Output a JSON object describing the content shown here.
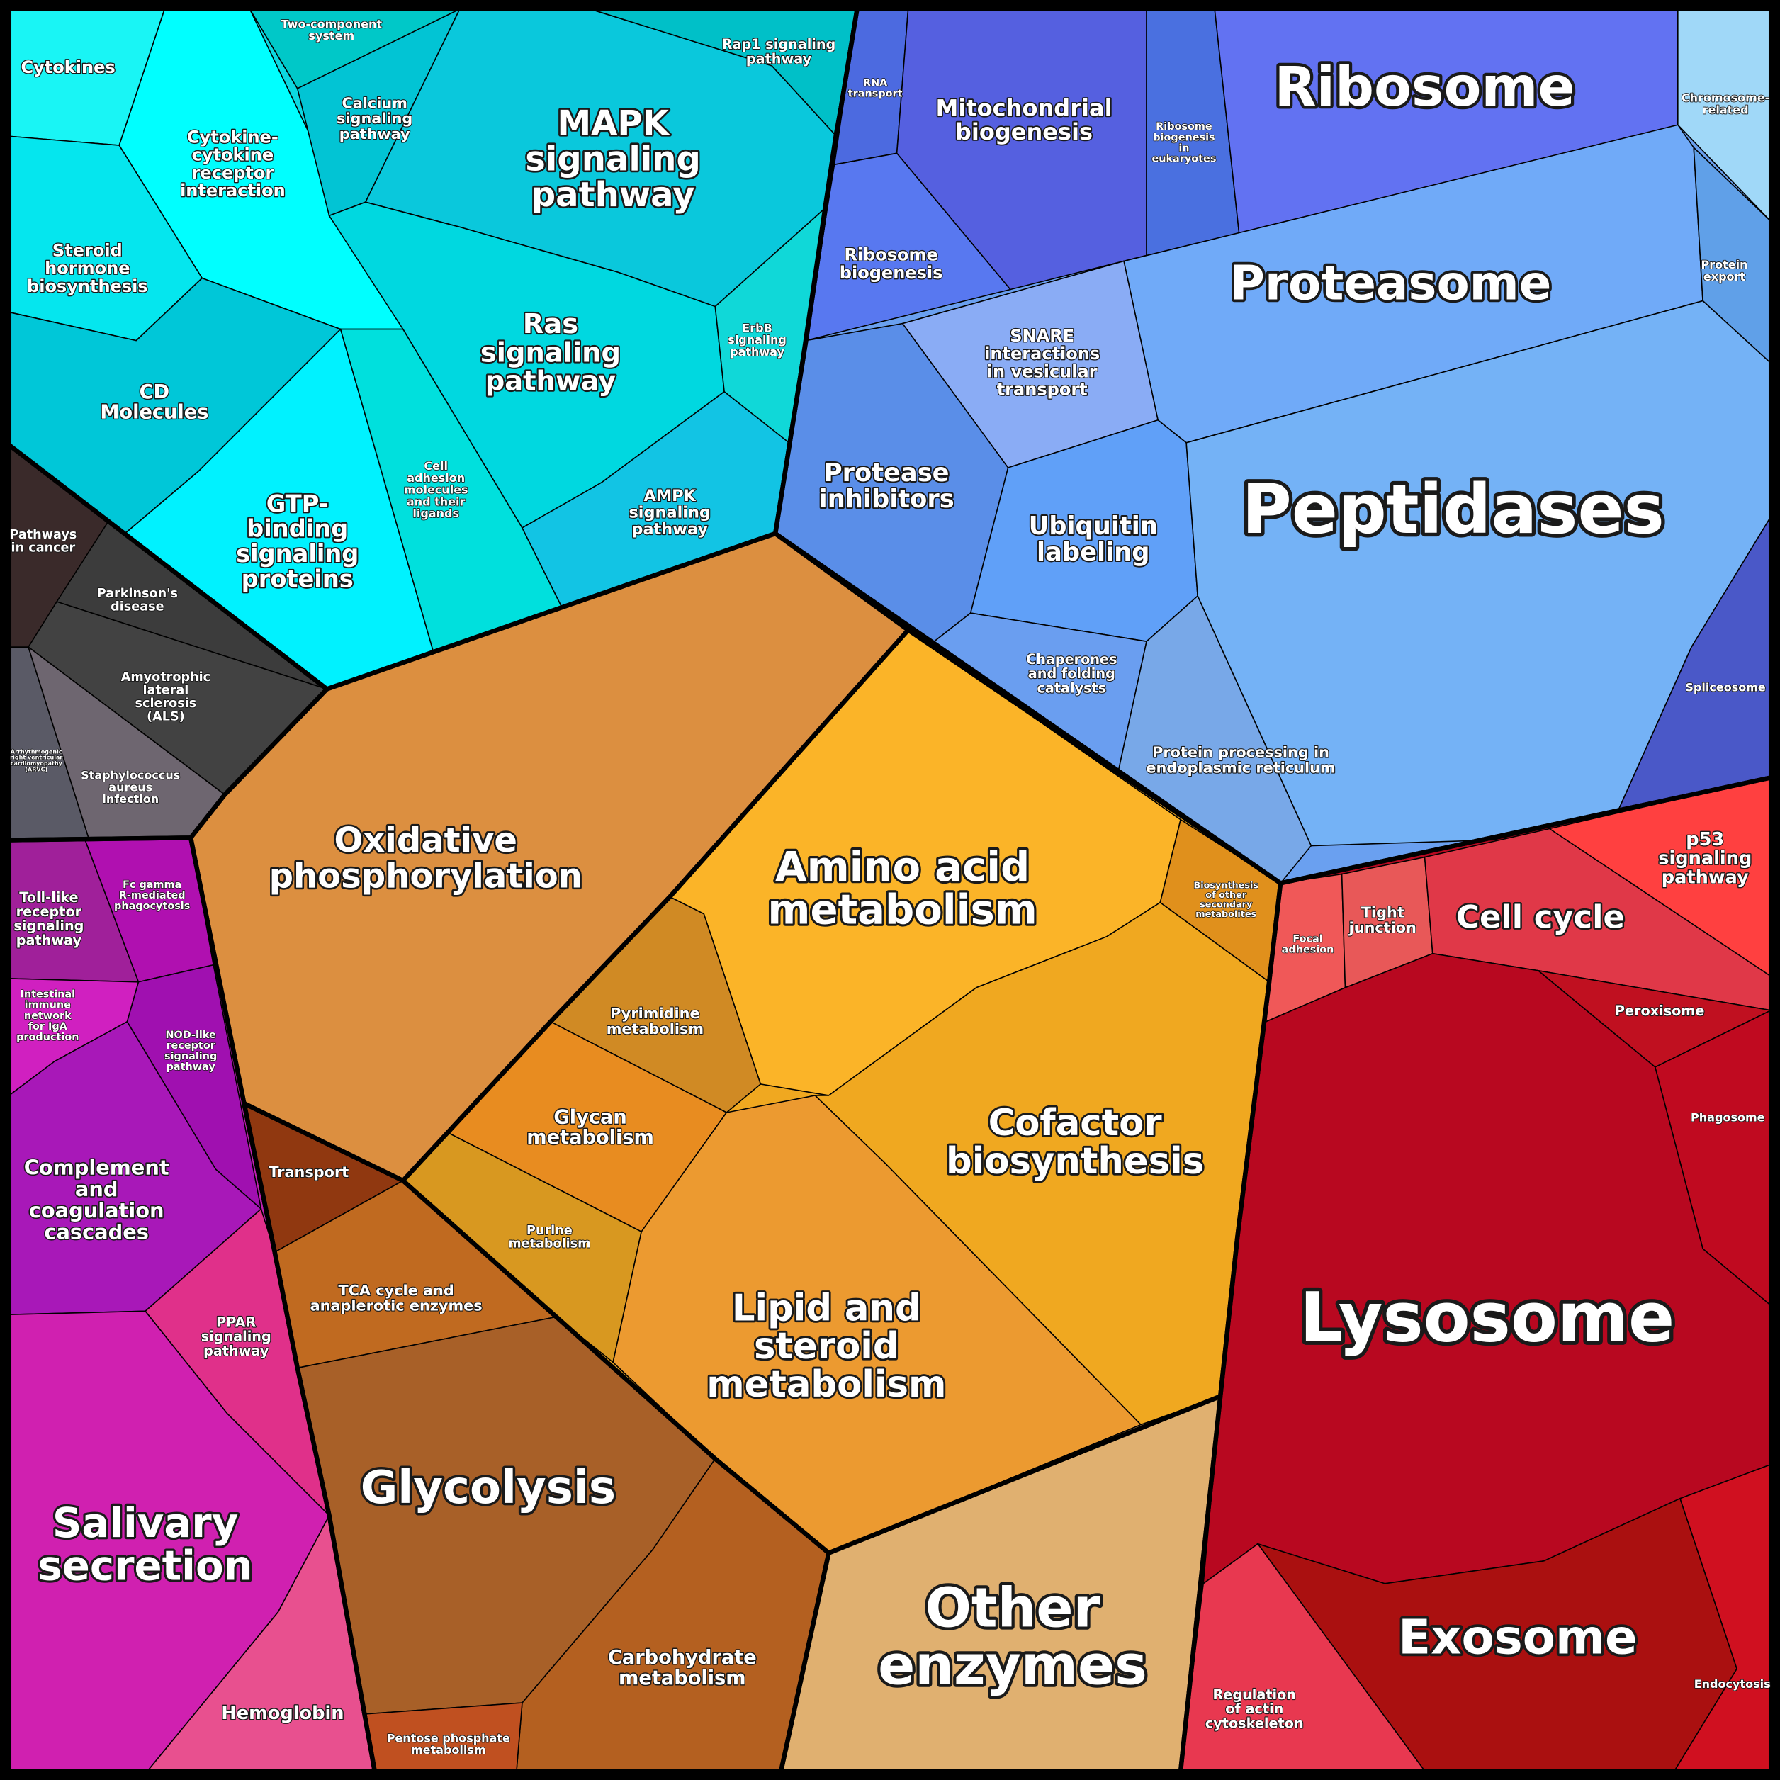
{
  "nodes": [
    {
      "lines": [
        "Cytokines"
      ]
    },
    {
      "lines": [
        "Cytokine-",
        "cytokine",
        "receptor",
        "interaction"
      ]
    },
    {
      "lines": [
        "Steroid",
        "hormone",
        "biosynthesis"
      ]
    },
    {
      "lines": [
        "CD",
        "Molecules"
      ]
    },
    {
      "lines": [
        "GTP-",
        "binding",
        "signaling",
        "proteins"
      ]
    },
    {
      "lines": [
        "Two-component",
        "system"
      ]
    },
    {
      "lines": [
        "Calcium",
        "signaling",
        "pathway"
      ]
    },
    {
      "lines": [
        "MAPK",
        "signaling",
        "pathway"
      ]
    },
    {
      "lines": [
        "Rap1 signaling",
        "pathway"
      ]
    },
    {
      "lines": [
        "Ras",
        "signaling",
        "pathway"
      ]
    },
    {
      "lines": [
        "ErbB",
        "signaling",
        "pathway"
      ]
    },
    {
      "lines": [
        "Cell",
        "adhesion",
        "molecules",
        "and their",
        "ligands"
      ]
    },
    {
      "lines": [
        "AMPK",
        "signaling",
        "pathway"
      ]
    },
    {
      "lines": [
        "Pathways",
        "in cancer"
      ]
    },
    {
      "lines": [
        "Parkinson's",
        "disease"
      ]
    },
    {
      "lines": [
        "Amyotrophic",
        "lateral",
        "sclerosis",
        "(ALS)"
      ]
    },
    {
      "lines": [
        "Arrhythmogenic",
        "right ventricular",
        "cardiomyopathy",
        "(ARVC)"
      ]
    },
    {
      "lines": [
        "Staphylococcus",
        "aureus",
        "infection"
      ]
    },
    {
      "lines": [
        "RNA",
        "transport"
      ]
    },
    {
      "lines": [
        "Mitochondrial",
        "biogenesis"
      ]
    },
    {
      "lines": [
        "Ribosome",
        "biogenesis",
        "in",
        "eukaryotes"
      ]
    },
    {
      "lines": [
        "Ribosome"
      ]
    },
    {
      "lines": [
        "Chromosome-",
        "related"
      ]
    },
    {
      "lines": [
        "Ribosome",
        "biogenesis"
      ]
    },
    {
      "lines": [
        "Proteasome"
      ]
    },
    {
      "lines": [
        "Protein",
        "export"
      ]
    },
    {
      "lines": [
        "SNARE",
        "interactions",
        "in vesicular",
        "transport"
      ]
    },
    {
      "lines": [
        "Protease",
        "inhibitors"
      ]
    },
    {
      "lines": [
        "Ubiquitin",
        "labeling"
      ]
    },
    {
      "lines": [
        "Peptidases"
      ]
    },
    {
      "lines": [
        "Spliceosome"
      ]
    },
    {
      "lines": [
        "Chaperones",
        "and folding",
        "catalysts"
      ]
    },
    {
      "lines": [
        "Protein processing in",
        "endoplasmic reticulum"
      ]
    },
    {
      "lines": [
        "Toll-like",
        "receptor",
        "signaling",
        "pathway"
      ]
    },
    {
      "lines": [
        "Fc gamma",
        "R-mediated",
        "phagocytosis"
      ]
    },
    {
      "lines": [
        "Intestinal",
        "immune",
        "network",
        "for IgA",
        "production"
      ]
    },
    {
      "lines": [
        "NOD-like",
        "receptor",
        "signaling",
        "pathway"
      ]
    },
    {
      "lines": [
        "Complement",
        "and",
        "coagulation",
        "cascades"
      ]
    },
    {
      "lines": [
        "PPAR",
        "signaling",
        "pathway"
      ]
    },
    {
      "lines": [
        "Salivary",
        "secretion"
      ]
    },
    {
      "lines": [
        "Hemoglobin"
      ]
    },
    {
      "lines": [
        "Oxidative",
        "phosphorylation"
      ]
    },
    {
      "lines": [
        "Transport"
      ]
    },
    {
      "lines": [
        "TCA cycle and",
        "anaplerotic enzymes"
      ]
    },
    {
      "lines": [
        "Glycolysis"
      ]
    },
    {
      "lines": [
        "Carbohydrate",
        "metabolism"
      ]
    },
    {
      "lines": [
        "Pentose phosphate",
        "metabolism"
      ]
    },
    {
      "lines": [
        "Amino acid",
        "metabolism"
      ]
    },
    {
      "lines": [
        "Biosynthesis",
        "of other",
        "secondary",
        "metabolites"
      ]
    },
    {
      "lines": [
        "Pyrimidine",
        "metabolism"
      ]
    },
    {
      "lines": [
        "Glycan",
        "metabolism"
      ]
    },
    {
      "lines": [
        "Purine",
        "metabolism"
      ]
    },
    {
      "lines": [
        "Cofactor",
        "biosynthesis"
      ]
    },
    {
      "lines": [
        "Lipid and",
        "steroid",
        "metabolism"
      ]
    },
    {
      "lines": [
        "Other",
        "enzymes"
      ]
    },
    {
      "lines": [
        "Focal",
        "adhesion"
      ]
    },
    {
      "lines": [
        "Tight",
        "junction"
      ]
    },
    {
      "lines": [
        "Cell cycle"
      ]
    },
    {
      "lines": [
        "p53",
        "signaling",
        "pathway"
      ]
    },
    {
      "lines": [
        "Peroxisome"
      ]
    },
    {
      "lines": [
        "Phagosome"
      ]
    },
    {
      "lines": [
        "Lysosome"
      ]
    },
    {
      "lines": [
        "Exosome"
      ]
    },
    {
      "lines": [
        "Endocytosis"
      ]
    },
    {
      "lines": [
        "Regulation",
        "of actin",
        "cytoskeleton"
      ]
    }
  ]
}
